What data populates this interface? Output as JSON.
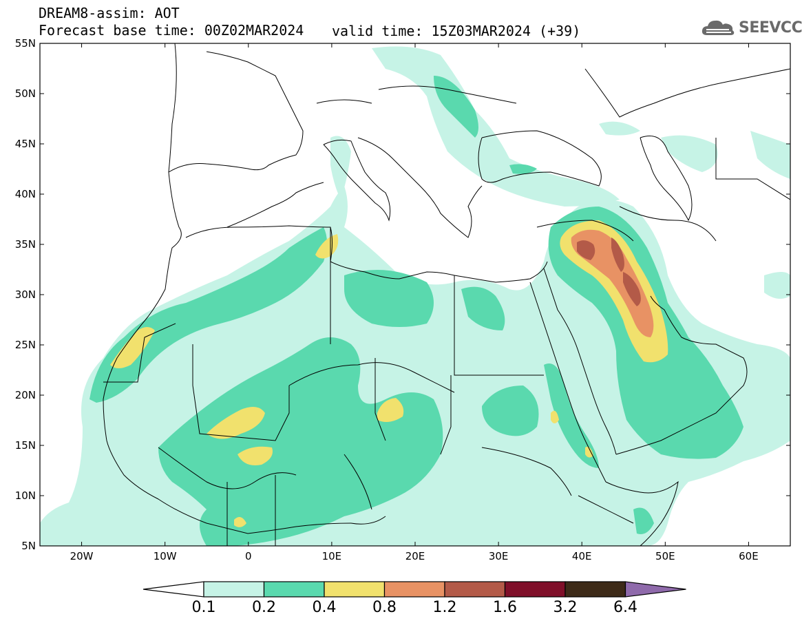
{
  "header": {
    "title": "DREAM8-assim: AOT",
    "base_time": "Forecast base time: 00Z02MAR2024",
    "valid_time": "valid time: 15Z03MAR2024 (+39)"
  },
  "logo": {
    "icon": "cloud-icon",
    "text": "SEEVCCC",
    "color": "#6a6a6a"
  },
  "map": {
    "lon_range": [
      -25,
      65
    ],
    "lat_range": [
      5,
      55
    ],
    "lat_labels": [
      "55N",
      "50N",
      "45N",
      "40N",
      "35N",
      "30N",
      "25N",
      "20N",
      "15N",
      "10N",
      "5N"
    ],
    "lon_labels": [
      "20W",
      "10W",
      "0",
      "10E",
      "20E",
      "30E",
      "40E",
      "50E",
      "60E"
    ]
  },
  "colorbar": {
    "labels": [
      "0.1",
      "0.2",
      "0.4",
      "0.8",
      "1.2",
      "1.6",
      "3.2",
      "6.4"
    ],
    "colors": [
      "#c6f3e6",
      "#5ad9ae",
      "#f1e16d",
      "#e89264",
      "#b35a48",
      "#7f0f29",
      "#3d2a18"
    ],
    "under_color": "#ffffff",
    "over_color": "#8f6aab"
  }
}
